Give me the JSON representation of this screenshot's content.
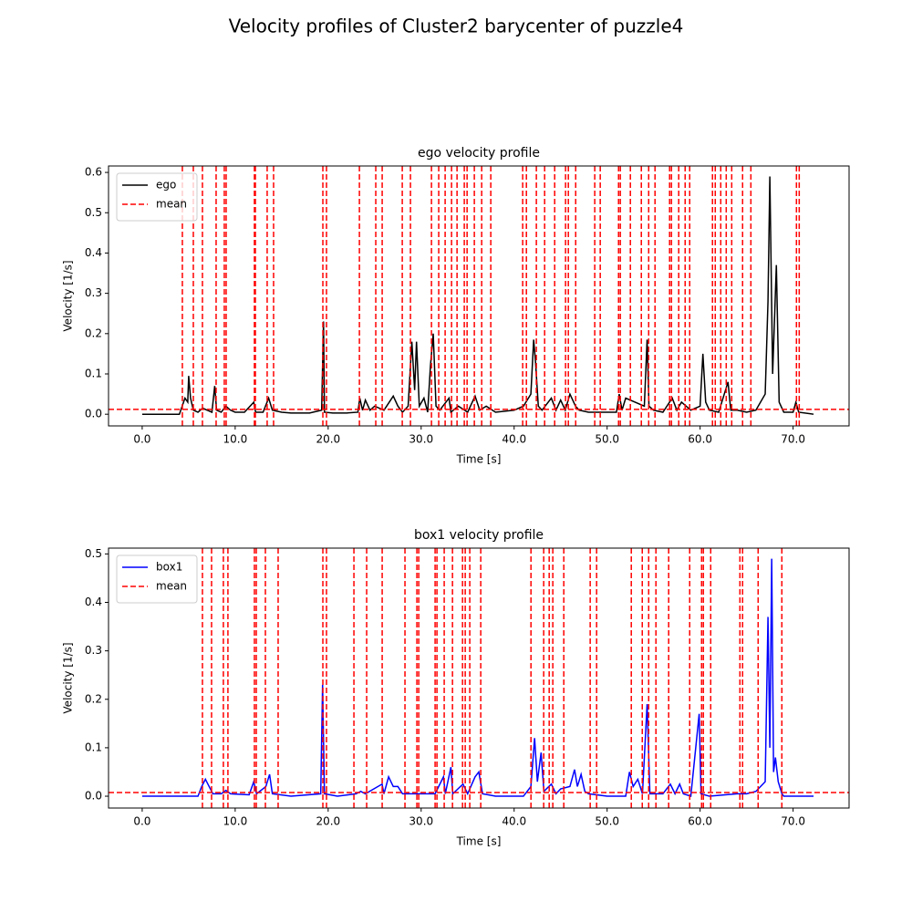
{
  "title": "Velocity profiles of  Cluster2 barycenter of puzzle4",
  "chart_data": [
    {
      "type": "line",
      "title": "ego velocity profile",
      "xlabel": "Time [s]",
      "ylabel": "Velocity [1/s]",
      "xlim": [
        -3.62,
        76.02
      ],
      "ylim": [
        -0.029,
        0.616
      ],
      "xticks": [
        {
          "value": 0,
          "label": "0.0"
        },
        {
          "value": 10,
          "label": "10.0"
        },
        {
          "value": 20,
          "label": "20.0"
        },
        {
          "value": 30,
          "label": "30.0"
        },
        {
          "value": 40,
          "label": "40.0"
        },
        {
          "value": 50,
          "label": "50.0"
        },
        {
          "value": 60,
          "label": "60.0"
        },
        {
          "value": 70,
          "label": "70.0"
        }
      ],
      "yticks": [
        {
          "value": 0,
          "label": "0.0"
        },
        0.1,
        0.2,
        0.3,
        0.4,
        0.5,
        0.6
      ],
      "legend": "upper left",
      "series": [
        {
          "name": "ego",
          "color": "#000000",
          "linestyle": "solid",
          "x": [
            0,
            4,
            4.3,
            4.6,
            4.9,
            5.0,
            5.2,
            5.5,
            6,
            6.5,
            7,
            7.5,
            7.8,
            8,
            8.5,
            9,
            9.5,
            10,
            11,
            12,
            12.2,
            13,
            13.6,
            14,
            15,
            16,
            18,
            19.3,
            19.5,
            19.6,
            20.5,
            22,
            23.2,
            23.4,
            23.7,
            24,
            24.5,
            25,
            26,
            27,
            27.5,
            28,
            28.6,
            29,
            29.3,
            29.5,
            29.8,
            30.3,
            30.7,
            31.0,
            31.3,
            31.6,
            32,
            33,
            33.2,
            34,
            35,
            35.8,
            36.3,
            37,
            38,
            40,
            41,
            41.8,
            42.1,
            42.3,
            42.6,
            43,
            44,
            44.5,
            45,
            45.5,
            46,
            46.6,
            47,
            48,
            49,
            51,
            51.3,
            51.6,
            52,
            53,
            54,
            54.3,
            54.5,
            55,
            56,
            57,
            57.5,
            58,
            59,
            60,
            60.3,
            60.6,
            61,
            62,
            63,
            63.3,
            64,
            65,
            66,
            67,
            67.3,
            67.5,
            67.8,
            68.2,
            68.5,
            69,
            70,
            70.3,
            70.6,
            72.2
          ],
          "values": [
            0,
            0,
            0.02,
            0.04,
            0.03,
            0.095,
            0.04,
            0.01,
            0.005,
            0.015,
            0.01,
            0.005,
            0.07,
            0.01,
            0.005,
            0.02,
            0.01,
            0.005,
            0.005,
            0.03,
            0.005,
            0.005,
            0.04,
            0.01,
            0.005,
            0.003,
            0.003,
            0.01,
            0.23,
            0.005,
            0.003,
            0.003,
            0.005,
            0.04,
            0.01,
            0.035,
            0.01,
            0.02,
            0.01,
            0.045,
            0.02,
            0.005,
            0.02,
            0.18,
            0.06,
            0.18,
            0.02,
            0.04,
            0.005,
            0.12,
            0.2,
            0.02,
            0.01,
            0.04,
            0.005,
            0.02,
            0.005,
            0.045,
            0.01,
            0.02,
            0.005,
            0.01,
            0.02,
            0.05,
            0.185,
            0.13,
            0.02,
            0.01,
            0.04,
            0.01,
            0.035,
            0.01,
            0.05,
            0.02,
            0.01,
            0.005,
            0.005,
            0.005,
            0.05,
            0.01,
            0.04,
            0.03,
            0.02,
            0.185,
            0.02,
            0.01,
            0.005,
            0.04,
            0.01,
            0.03,
            0.01,
            0.02,
            0.15,
            0.03,
            0.01,
            0.005,
            0.08,
            0.01,
            0.01,
            0.005,
            0.01,
            0.05,
            0.28,
            0.59,
            0.1,
            0.37,
            0.03,
            0.005,
            0.005,
            0.03,
            0.005,
            0
          ]
        },
        {
          "name": "mean",
          "color": "#ff0000",
          "linestyle": "dashed",
          "value": 0.012,
          "vlines": [
            4.32,
            5.5,
            6.48,
            7.95,
            8.83,
            9.03,
            12.07,
            12.17,
            13.44,
            14.13,
            19.43,
            19.82,
            23.36,
            25.12,
            25.81,
            27.97,
            28.85,
            31.11,
            31.89,
            32.58,
            33.27,
            33.86,
            34.64,
            34.94,
            35.72,
            36.51,
            37.49,
            40.92,
            41.32,
            42.39,
            43.28,
            44.36,
            45.53,
            45.83,
            46.62,
            48.67,
            49.26,
            51.23,
            51.42,
            52.5,
            53.68,
            54.47,
            55.15,
            56.72,
            56.92,
            57.7,
            58.39,
            58.88,
            61.33,
            61.63,
            62.22,
            62.81,
            63.4,
            64.57,
            65.46,
            70.36,
            70.66
          ]
        }
      ]
    },
    {
      "type": "line",
      "title": "box1 velocity profile",
      "xlabel": "Time [s]",
      "ylabel": "Velocity [1/s]",
      "xlim": [
        -3.62,
        76.02
      ],
      "ylim": [
        -0.0244,
        0.512
      ],
      "xticks": [
        {
          "value": 0,
          "label": "0.0"
        },
        {
          "value": 10,
          "label": "10.0"
        },
        {
          "value": 20,
          "label": "20.0"
        },
        {
          "value": 30,
          "label": "30.0"
        },
        {
          "value": 40,
          "label": "40.0"
        },
        {
          "value": 50,
          "label": "50.0"
        },
        {
          "value": 60,
          "label": "60.0"
        },
        {
          "value": 70,
          "label": "70.0"
        }
      ],
      "yticks": [
        {
          "value": 0,
          "label": "0.0"
        },
        0.1,
        0.2,
        0.3,
        0.4,
        0.5
      ],
      "legend": "upper left",
      "series": [
        {
          "name": "box1",
          "color": "#0000ff",
          "linestyle": "solid",
          "x": [
            0,
            6,
            6.4,
            6.8,
            7.2,
            7.6,
            8.5,
            9,
            9.5,
            11.5,
            12,
            12.3,
            13.3,
            13.7,
            14,
            16,
            19.2,
            19.4,
            19.6,
            21,
            23,
            23.5,
            24,
            25.8,
            26,
            26.5,
            27,
            27.5,
            28,
            29,
            30,
            31.5,
            32.4,
            32.6,
            33.2,
            33.4,
            34.5,
            35,
            35.8,
            36.2,
            36.6,
            38,
            41,
            41.8,
            42.2,
            42.5,
            42.9,
            43.2,
            44,
            44.5,
            45,
            46,
            46.5,
            46.8,
            47.2,
            47.6,
            48,
            50,
            52,
            52.4,
            52.8,
            53.3,
            53.8,
            54.3,
            54.6,
            56,
            56.8,
            57.3,
            57.8,
            58.2,
            59,
            59.9,
            60.1,
            61,
            64,
            65,
            66,
            67,
            67.3,
            67.5,
            67.7,
            67.9,
            68.1,
            68.4,
            68.8,
            69,
            72.2
          ],
          "values": [
            0,
            0,
            0.02,
            0.035,
            0.02,
            0.005,
            0.005,
            0.012,
            0.005,
            0.003,
            0.03,
            0.005,
            0.02,
            0.045,
            0.005,
            0,
            0.005,
            0.23,
            0.005,
            0,
            0.005,
            0.01,
            0.005,
            0.025,
            0.005,
            0.04,
            0.02,
            0.02,
            0.005,
            0.005,
            0.005,
            0.005,
            0.04,
            0.005,
            0.06,
            0.005,
            0.025,
            0.005,
            0.04,
            0.05,
            0.005,
            0,
            0,
            0.02,
            0.12,
            0.03,
            0.09,
            0.01,
            0.025,
            0.005,
            0.015,
            0.02,
            0.055,
            0.02,
            0.045,
            0.01,
            0.005,
            0,
            0,
            0.05,
            0.02,
            0.035,
            0.005,
            0.19,
            0.005,
            0.005,
            0.025,
            0.005,
            0.025,
            0.005,
            0,
            0.17,
            0.005,
            0,
            0.005,
            0.005,
            0.01,
            0.03,
            0.37,
            0.1,
            0.49,
            0.05,
            0.08,
            0.03,
            0.005,
            0,
            0
          ]
        },
        {
          "name": "mean",
          "color": "#ff0000",
          "linestyle": "dashed",
          "value": 0.0075,
          "vlines": [
            6.48,
            7.46,
            8.73,
            9.22,
            12.07,
            12.27,
            13.25,
            14.62,
            19.43,
            19.82,
            22.77,
            24.14,
            25.81,
            28.26,
            29.54,
            29.74,
            31.5,
            31.7,
            32.48,
            33.37,
            34.45,
            34.74,
            35.23,
            36.41,
            41.81,
            43.18,
            43.77,
            44.16,
            45.34,
            48.18,
            48.87,
            52.6,
            53.78,
            54.47,
            55.25,
            56.62,
            58.88,
            60.16,
            60.35,
            61.14,
            64.28,
            64.57,
            66.24,
            68.79
          ]
        }
      ]
    }
  ]
}
